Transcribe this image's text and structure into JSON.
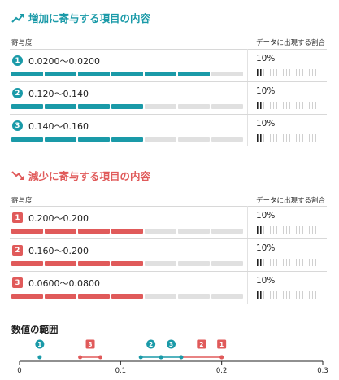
{
  "colors": {
    "increase": "#1a9aa8",
    "decrease": "#e05a5a",
    "bar_empty": "#e0e0e0"
  },
  "increase": {
    "icon": "trending-up-icon",
    "title": "増加に寄与する項目の内容",
    "col_contribution": "寄与度",
    "col_share": "データに出現する割合",
    "rows": [
      {
        "badge": "1",
        "range": "0.0200〜0.0200",
        "filled": 6,
        "share": "10%"
      },
      {
        "badge": "2",
        "range": "0.120〜0.140",
        "filled": 4,
        "share": "10%"
      },
      {
        "badge": "3",
        "range": "0.140〜0.160",
        "filled": 4,
        "share": "10%"
      }
    ]
  },
  "decrease": {
    "icon": "trending-down-icon",
    "title": "減少に寄与する項目の内容",
    "col_contribution": "寄与度",
    "col_share": "データに出現する割合",
    "rows": [
      {
        "badge": "1",
        "range": "0.200〜0.200",
        "filled": 4,
        "share": "10%"
      },
      {
        "badge": "2",
        "range": "0.160〜0.200",
        "filled": 4,
        "share": "10%"
      },
      {
        "badge": "3",
        "range": "0.0600〜0.0800",
        "filled": 4,
        "share": "10%"
      }
    ]
  },
  "value_range": {
    "title": "数値の範囲",
    "axis_min": 0,
    "axis_max": 0.3,
    "ticks": [
      "0",
      "0.1",
      "0.2",
      "0.3"
    ],
    "increase_items": [
      {
        "badge": "1",
        "from": 0.02,
        "to": 0.02
      },
      {
        "badge": "2",
        "from": 0.12,
        "to": 0.14
      },
      {
        "badge": "3",
        "from": 0.14,
        "to": 0.16
      }
    ],
    "decrease_items": [
      {
        "badge": "1",
        "from": 0.2,
        "to": 0.2
      },
      {
        "badge": "2",
        "from": 0.16,
        "to": 0.2
      },
      {
        "badge": "3",
        "from": 0.06,
        "to": 0.08
      }
    ]
  }
}
